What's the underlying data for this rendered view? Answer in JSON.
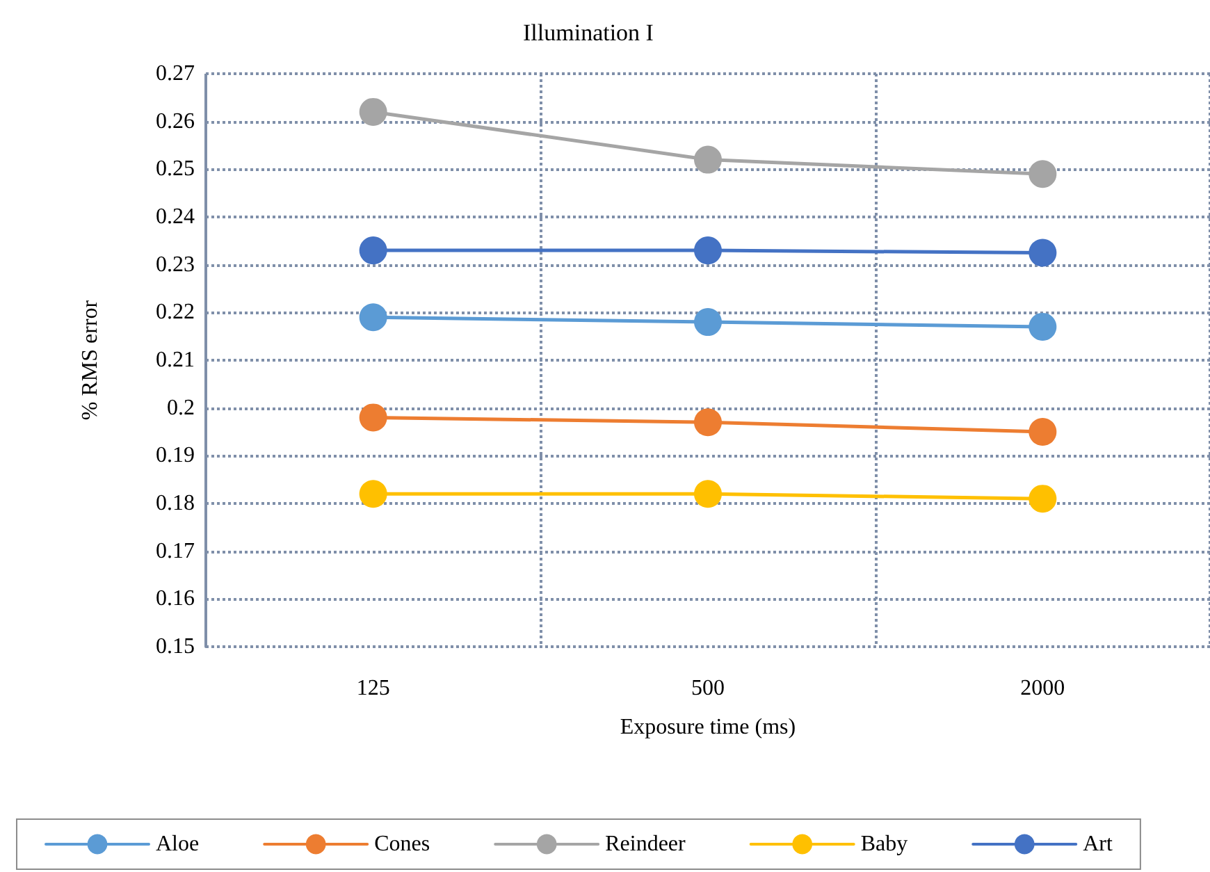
{
  "chart_data": {
    "type": "line",
    "title": "Illumination I",
    "xlabel": "Exposure time (ms)",
    "ylabel": "% RMS error",
    "categories": [
      "125",
      "500",
      "2000"
    ],
    "series": [
      {
        "name": "Aloe",
        "color": "#5b9bd5",
        "values": [
          0.219,
          0.218,
          0.217
        ]
      },
      {
        "name": "Cones",
        "color": "#ed7d31",
        "values": [
          0.198,
          0.197,
          0.195
        ]
      },
      {
        "name": "Reindeer",
        "color": "#a5a5a5",
        "values": [
          0.262,
          0.252,
          0.249
        ]
      },
      {
        "name": "Baby",
        "color": "#ffc000",
        "values": [
          0.182,
          0.182,
          0.181
        ]
      },
      {
        "name": "Art",
        "color": "#4472c4",
        "values": [
          0.233,
          0.233,
          0.2325
        ]
      }
    ],
    "ylim": [
      0.15,
      0.27
    ],
    "yticks": [
      0.15,
      0.16,
      0.17,
      0.18,
      0.19,
      0.2,
      0.21,
      0.22,
      0.23,
      0.24,
      0.25,
      0.26,
      0.27
    ],
    "grid": true,
    "legend": "bottom",
    "marker": "circle",
    "line_style": "solid"
  }
}
